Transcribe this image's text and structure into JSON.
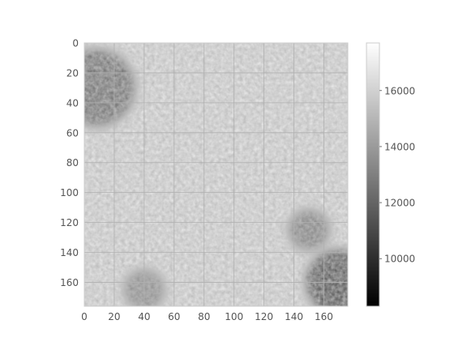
{
  "chart_data": {
    "type": "heatmap",
    "title": "",
    "xlabel": "",
    "ylabel": "",
    "image_shape": [
      176,
      176
    ],
    "xlim": [
      0,
      176
    ],
    "ylim": [
      176,
      0
    ],
    "x_ticks": [
      "0",
      "20",
      "40",
      "60",
      "80",
      "100",
      "120",
      "140",
      "160"
    ],
    "y_ticks": [
      "0",
      "20",
      "40",
      "60",
      "80",
      "100",
      "120",
      "140",
      "160"
    ],
    "colormap": "gray",
    "grid": true,
    "colorbar": {
      "range": [
        8300,
        17700
      ],
      "ticks": [
        "10000",
        "12000",
        "14000",
        "16000"
      ],
      "placement": "right"
    },
    "description_values": {
      "center_intensity": 16800,
      "dark_regions": [
        {
          "x": 8,
          "y": 30,
          "r": 26,
          "value": 11000
        },
        {
          "x": 170,
          "y": 160,
          "r": 22,
          "value": 9500
        },
        {
          "x": 150,
          "y": 125,
          "r": 14,
          "value": 12000
        },
        {
          "x": 40,
          "y": 165,
          "r": 14,
          "value": 12500
        }
      ]
    }
  }
}
